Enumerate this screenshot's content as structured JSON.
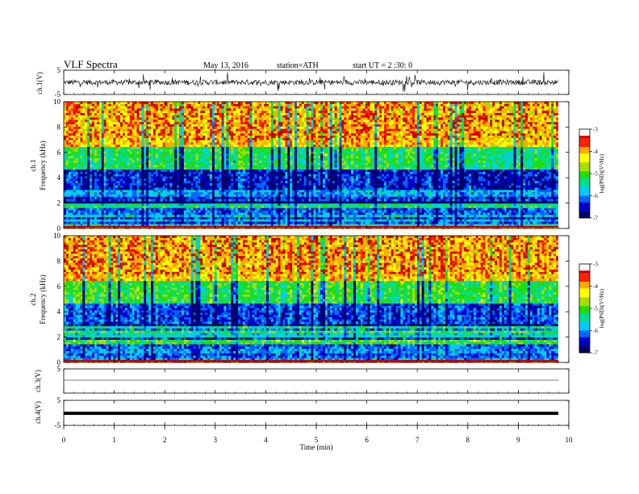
{
  "header": {
    "title": "VLF  Spectra",
    "date": "May 13, 2016",
    "station": "station=ATH",
    "start": "start  UT =   2 :30: 0"
  },
  "colors": {
    "background": "#ffffff",
    "axis": "#000000",
    "colormap": [
      "#000066",
      "#0000cc",
      "#0066ff",
      "#00ccff",
      "#00e08a",
      "#22dd00",
      "#aadd00",
      "#ffff00",
      "#ffaa00",
      "#ff2200",
      "#cc0000",
      "#ffffff"
    ]
  },
  "chart_data": [
    {
      "type": "line",
      "panel": "ch1-waveform",
      "ylabel": "ch.1(V)",
      "ylim": [
        -5,
        5
      ],
      "yticks": [
        "5",
        "-5"
      ],
      "x_range_min": [
        0,
        9.8
      ],
      "description_values": {
        "mean": 0.0,
        "amplitude_range": [
          -2.5,
          2.5
        ]
      }
    },
    {
      "type": "heatmap",
      "panel": "ch1-spectrogram",
      "ylabel_lines": [
        "ch.1",
        "Frequency (kHz)"
      ],
      "ylim": [
        0,
        10
      ],
      "yticks": [
        "0",
        "2",
        "4",
        "6",
        "8",
        "10"
      ],
      "colorbar": {
        "label": "log(PSD)(V²/Hz)",
        "range": [
          -7,
          -3
        ],
        "ticks": [
          "-3",
          "-4",
          "-5",
          "-6",
          "-7"
        ]
      },
      "bands_kHz": [
        {
          "range": [
            0,
            0.2
          ],
          "level": -3.2
        },
        {
          "range": [
            0.2,
            2.0
          ],
          "level": -5.6
        },
        {
          "range": [
            2.0,
            4.6
          ],
          "level": -6.4
        },
        {
          "range": [
            4.6,
            6.5
          ],
          "level": -5.2
        },
        {
          "range": [
            6.5,
            10
          ],
          "level": -4.0
        }
      ]
    },
    {
      "type": "heatmap",
      "panel": "ch2-spectrogram",
      "ylabel_lines": [
        "ch.2",
        "Frequency (kHz)"
      ],
      "ylim": [
        0,
        10
      ],
      "yticks": [
        "0",
        "2",
        "4",
        "6",
        "8",
        "10"
      ],
      "colorbar": {
        "label": "log(PSD)(V²/Hz)",
        "range": [
          -7,
          -3
        ],
        "ticks": [
          "-3",
          "-4",
          "-5",
          "-6",
          "-7"
        ]
      },
      "bands_kHz": [
        {
          "range": [
            0,
            0.2
          ],
          "level": -3.5
        },
        {
          "range": [
            0.2,
            2.8
          ],
          "level": -5.6
        },
        {
          "range": [
            2.8,
            4.6
          ],
          "level": -6.2
        },
        {
          "range": [
            4.6,
            6.5
          ],
          "level": -5.1
        },
        {
          "range": [
            6.5,
            10
          ],
          "level": -4.0
        }
      ]
    },
    {
      "type": "line",
      "panel": "ch3-waveform",
      "ylabel": "ch.3(V)",
      "ylim": [
        -5,
        5
      ],
      "yticks": [
        "5"
      ],
      "constant_value": 0.0
    },
    {
      "type": "line",
      "panel": "ch4-waveform",
      "ylabel": "ch.4(V)",
      "ylim": [
        -5,
        5
      ],
      "yticks": [
        "5",
        "-5"
      ],
      "constant_value": 0.0
    }
  ],
  "xaxis": {
    "label": "Time  (min)",
    "range": [
      0,
      10
    ],
    "ticks": [
      "0",
      "1",
      "2",
      "3",
      "4",
      "5",
      "6",
      "7",
      "8",
      "9",
      "10"
    ]
  }
}
